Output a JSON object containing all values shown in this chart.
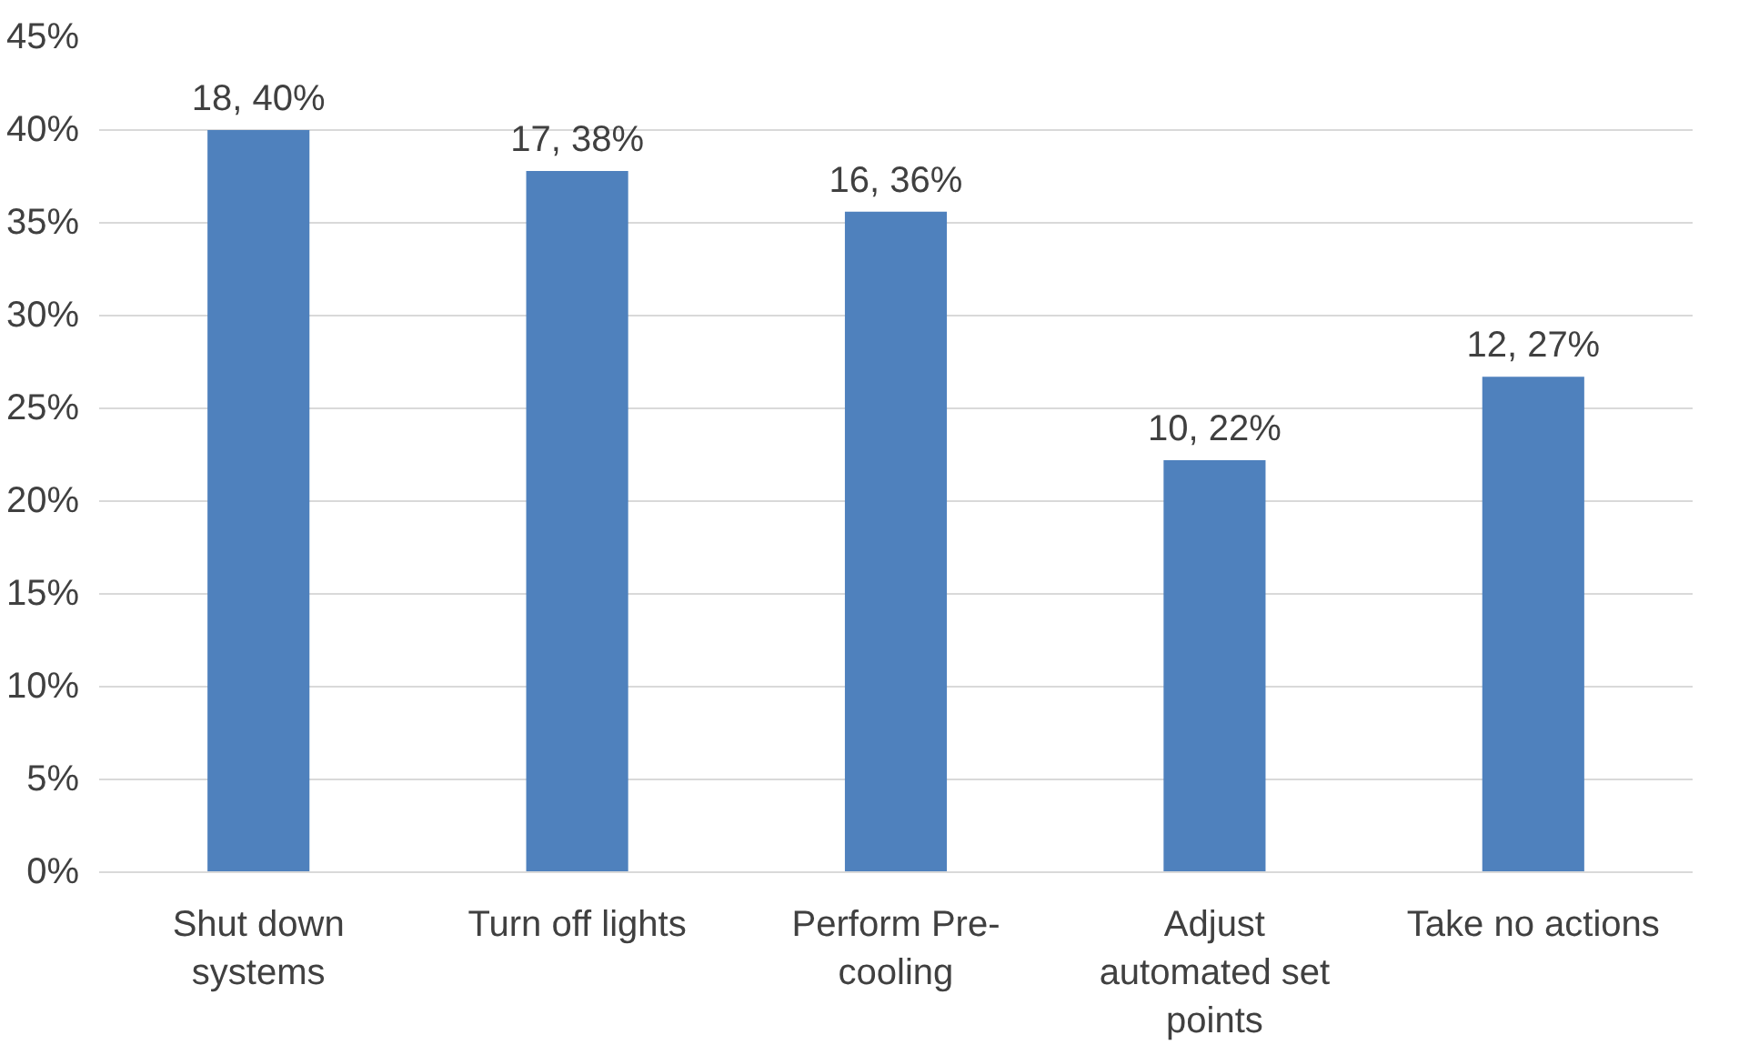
{
  "chart_data": {
    "type": "bar",
    "categories": [
      "Shut down systems",
      "Turn off lights",
      "Perform Pre-cooling",
      "Adjust automated set points",
      "Take no actions"
    ],
    "values": [
      40,
      37.8,
      35.6,
      22.2,
      26.7
    ],
    "value_labels": [
      "18, 40%",
      "17, 38%",
      "16, 36%",
      "10, 22%",
      "12, 27%"
    ],
    "color": "#4f81bd",
    "ylim": [
      0,
      45
    ],
    "yticks": [
      {
        "value": 0,
        "label": "0%"
      },
      {
        "value": 5,
        "label": "5%"
      },
      {
        "value": 10,
        "label": "10%"
      },
      {
        "value": 15,
        "label": "15%"
      },
      {
        "value": 20,
        "label": "20%"
      },
      {
        "value": 25,
        "label": "25%"
      },
      {
        "value": 30,
        "label": "30%"
      },
      {
        "value": 35,
        "label": "35%"
      },
      {
        "value": 40,
        "label": "40%"
      },
      {
        "value": 45,
        "label": "45%"
      }
    ],
    "grid": "y"
  }
}
